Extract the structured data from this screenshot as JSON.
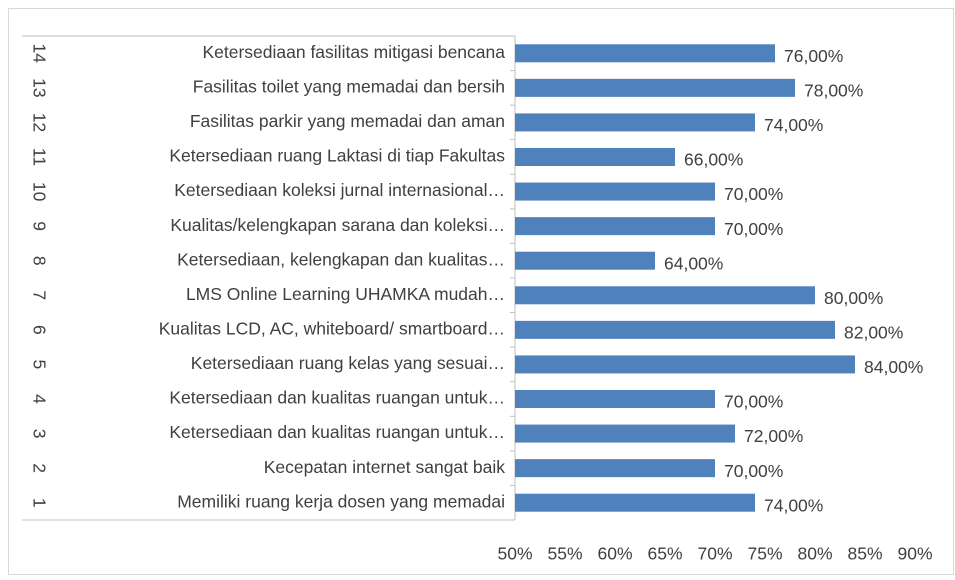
{
  "chart_data": {
    "type": "bar",
    "orientation": "horizontal",
    "category_numbers": [
      1,
      2,
      3,
      4,
      5,
      6,
      7,
      8,
      9,
      10,
      11,
      12,
      13,
      14
    ],
    "categories": [
      "Memiliki ruang kerja dosen yang memadai",
      "Kecepatan internet sangat baik",
      "Ketersediaan dan kualitas ruangan untuk…",
      "Ketersediaan dan kualitas ruangan untuk…",
      "Ketersediaan ruang kelas yang sesuai…",
      "Kualitas LCD, AC, whiteboard/ smartboard…",
      "LMS Online Learning UHAMKA mudah…",
      "Ketersediaan, kelengkapan dan kualitas…",
      "Kualitas/kelengkapan sarana dan koleksi…",
      "Ketersediaan koleksi jurnal internasional…",
      "Ketersediaan ruang Laktasi di tiap Fakultas",
      "Fasilitas parkir yang memadai dan aman",
      "Fasilitas toilet yang memadai dan bersih",
      "Ketersediaan fasilitas mitigasi bencana"
    ],
    "values": [
      74,
      70,
      72,
      70,
      84,
      82,
      80,
      64,
      70,
      70,
      66,
      74,
      78,
      76
    ],
    "value_labels": [
      "74,00%",
      "70,00%",
      "72,00%",
      "70,00%",
      "84,00%",
      "82,00%",
      "80,00%",
      "64,00%",
      "70,00%",
      "70,00%",
      "66,00%",
      "74,00%",
      "78,00%",
      "76,00%"
    ],
    "color": "#4f81bd",
    "xlim": [
      50,
      90
    ],
    "xticks": [
      {
        "value": 50,
        "label": "50%"
      },
      {
        "value": 55,
        "label": "55%"
      },
      {
        "value": 60,
        "label": "60%"
      },
      {
        "value": 65,
        "label": "65%"
      },
      {
        "value": 70,
        "label": "70%"
      },
      {
        "value": 75,
        "label": "75%"
      },
      {
        "value": 80,
        "label": "80%"
      },
      {
        "value": 85,
        "label": "85%"
      },
      {
        "value": 90,
        "label": "90%"
      }
    ],
    "grid": false
  }
}
